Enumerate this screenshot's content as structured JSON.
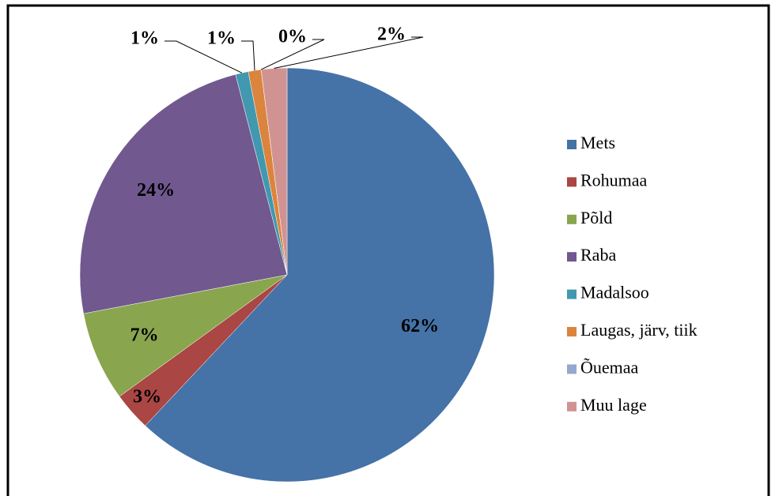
{
  "chart_data": {
    "type": "pie",
    "categories": [
      "Mets",
      "Rohumaa",
      "Põld",
      "Raba",
      "Madalsoo",
      "Laugas, järv, tiik",
      "Õuemaa",
      "Muu lage"
    ],
    "values": [
      62,
      3,
      7,
      24,
      1,
      1,
      0,
      2
    ],
    "value_labels": [
      "62%",
      "3%",
      "7%",
      "24%",
      "1%",
      "1%",
      "0%",
      "2%"
    ],
    "colors": [
      "#4572a7",
      "#aa4643",
      "#89a54e",
      "#71588f",
      "#4198af",
      "#db843d",
      "#93a9cf",
      "#d19392"
    ],
    "legend": "right"
  }
}
